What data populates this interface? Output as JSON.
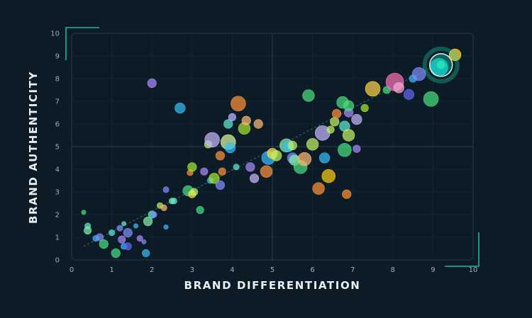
{
  "chart_data": {
    "type": "scatter",
    "title": "",
    "xlabel": "BRAND DIFFERENTIATION",
    "ylabel": "BRAND AUTHENTICITY",
    "xlim": [
      0,
      10
    ],
    "ylim": [
      0,
      10
    ],
    "xticks": [
      "0",
      "1",
      "2",
      "3",
      "4",
      "5",
      "6",
      "7",
      "8",
      "9",
      "10"
    ],
    "yticks": [
      "0",
      "1",
      "2",
      "3",
      "4",
      "5",
      "6",
      "7",
      "8",
      "9",
      "10"
    ],
    "grid": true,
    "trendline": true,
    "highlight": {
      "x": 9.2,
      "y": 8.6,
      "color": "#1de9b6"
    },
    "points": [
      {
        "x": 0.3,
        "y": 2.1,
        "size": 1.5,
        "color": "#4ade80"
      },
      {
        "x": 0.4,
        "y": 1.5,
        "size": 2,
        "color": "#5eead4"
      },
      {
        "x": 0.4,
        "y": 1.3,
        "size": 2.5,
        "color": "#86efac"
      },
      {
        "x": 0.6,
        "y": 0.95,
        "size": 2,
        "color": "#38bdf8"
      },
      {
        "x": 0.7,
        "y": 1.0,
        "size": 2.5,
        "color": "#818cf8"
      },
      {
        "x": 0.8,
        "y": 0.7,
        "size": 3,
        "color": "#4ade80"
      },
      {
        "x": 1.0,
        "y": 1.2,
        "size": 2,
        "color": "#5eead4"
      },
      {
        "x": 1.1,
        "y": 0.3,
        "size": 3,
        "color": "#4ade80"
      },
      {
        "x": 1.2,
        "y": 1.4,
        "size": 2,
        "color": "#818cf8"
      },
      {
        "x": 1.25,
        "y": 0.9,
        "size": 2.5,
        "color": "#a78bfa"
      },
      {
        "x": 1.3,
        "y": 1.6,
        "size": 1.5,
        "color": "#5eead4"
      },
      {
        "x": 1.3,
        "y": 0.6,
        "size": 2,
        "color": "#38bdf8"
      },
      {
        "x": 1.4,
        "y": 1.2,
        "size": 3,
        "color": "#818cf8"
      },
      {
        "x": 1.4,
        "y": 0.6,
        "size": 2.5,
        "color": "#6366f1"
      },
      {
        "x": 1.6,
        "y": 1.5,
        "size": 1.5,
        "color": "#38bdf8"
      },
      {
        "x": 1.7,
        "y": 0.95,
        "size": 2,
        "color": "#a78bfa"
      },
      {
        "x": 1.8,
        "y": 0.8,
        "size": 1.5,
        "color": "#818cf8"
      },
      {
        "x": 1.85,
        "y": 0.3,
        "size": 2.5,
        "color": "#38bdf8"
      },
      {
        "x": 1.9,
        "y": 1.7,
        "size": 3,
        "color": "#86efac"
      },
      {
        "x": 2.0,
        "y": 2.0,
        "size": 2.5,
        "color": "#5eead4"
      },
      {
        "x": 2.05,
        "y": 2.0,
        "size": 2,
        "color": "#818cf8"
      },
      {
        "x": 2.0,
        "y": 7.8,
        "size": 3,
        "color": "#a78bfa"
      },
      {
        "x": 2.2,
        "y": 2.4,
        "size": 2,
        "color": "#bef264"
      },
      {
        "x": 2.3,
        "y": 2.3,
        "size": 2,
        "color": "#fdba74"
      },
      {
        "x": 2.35,
        "y": 3.1,
        "size": 2,
        "color": "#818cf8"
      },
      {
        "x": 2.35,
        "y": 1.45,
        "size": 1.5,
        "color": "#38bdf8"
      },
      {
        "x": 2.5,
        "y": 2.6,
        "size": 2,
        "color": "#86efac"
      },
      {
        "x": 2.55,
        "y": 2.6,
        "size": 2,
        "color": "#5eead4"
      },
      {
        "x": 2.7,
        "y": 6.7,
        "size": 3.5,
        "color": "#38bdf8"
      },
      {
        "x": 2.9,
        "y": 3.05,
        "size": 3.5,
        "color": "#4ade80"
      },
      {
        "x": 2.95,
        "y": 3.85,
        "size": 2,
        "color": "#fb923c"
      },
      {
        "x": 3.0,
        "y": 4.1,
        "size": 3,
        "color": "#a3e635"
      },
      {
        "x": 3.0,
        "y": 2.9,
        "size": 2.5,
        "color": "#fde047"
      },
      {
        "x": 3.05,
        "y": 3.0,
        "size": 2.5,
        "color": "#bef264"
      },
      {
        "x": 3.2,
        "y": 2.2,
        "size": 2.5,
        "color": "#4ade80"
      },
      {
        "x": 3.3,
        "y": 3.9,
        "size": 2.5,
        "color": "#a78bfa"
      },
      {
        "x": 3.4,
        "y": 5.1,
        "size": 2.5,
        "color": "#bef264"
      },
      {
        "x": 3.45,
        "y": 3.5,
        "size": 2,
        "color": "#38bdf8"
      },
      {
        "x": 3.5,
        "y": 5.3,
        "size": 5,
        "color": "#c4b5fd"
      },
      {
        "x": 3.55,
        "y": 3.6,
        "size": 3.5,
        "color": "#a3e635"
      },
      {
        "x": 3.7,
        "y": 4.6,
        "size": 3,
        "color": "#fb923c"
      },
      {
        "x": 3.7,
        "y": 3.3,
        "size": 3,
        "color": "#818cf8"
      },
      {
        "x": 3.75,
        "y": 3.9,
        "size": 2.5,
        "color": "#fb923c"
      },
      {
        "x": 3.9,
        "y": 6.0,
        "size": 3,
        "color": "#5eead4"
      },
      {
        "x": 3.9,
        "y": 5.2,
        "size": 5,
        "color": "#d9f99d"
      },
      {
        "x": 3.95,
        "y": 4.95,
        "size": 3.5,
        "color": "#38bdf8"
      },
      {
        "x": 4.0,
        "y": 6.3,
        "size": 2.5,
        "color": "#c4b5fd"
      },
      {
        "x": 4.1,
        "y": 4.1,
        "size": 2,
        "color": "#5eead4"
      },
      {
        "x": 4.15,
        "y": 6.9,
        "size": 5,
        "color": "#fb923c"
      },
      {
        "x": 4.3,
        "y": 5.8,
        "size": 4,
        "color": "#a3e635"
      },
      {
        "x": 4.35,
        "y": 6.15,
        "size": 3,
        "color": "#fdba74"
      },
      {
        "x": 4.45,
        "y": 4.1,
        "size": 3,
        "color": "#a78bfa"
      },
      {
        "x": 4.55,
        "y": 3.6,
        "size": 3,
        "color": "#c4b5fd"
      },
      {
        "x": 4.65,
        "y": 6.0,
        "size": 3,
        "color": "#fdba74"
      },
      {
        "x": 4.85,
        "y": 3.9,
        "size": 4,
        "color": "#fb923c"
      },
      {
        "x": 4.9,
        "y": 4.5,
        "size": 4.5,
        "color": "#38bdf8"
      },
      {
        "x": 5.0,
        "y": 4.7,
        "size": 3.5,
        "color": "#fde047"
      },
      {
        "x": 5.1,
        "y": 4.6,
        "size": 3.5,
        "color": "#bef264"
      },
      {
        "x": 5.35,
        "y": 5.05,
        "size": 4.5,
        "color": "#86efac"
      },
      {
        "x": 5.4,
        "y": 5.0,
        "size": 3.5,
        "color": "#38bdf8"
      },
      {
        "x": 5.5,
        "y": 5.05,
        "size": 3,
        "color": "#bef264"
      },
      {
        "x": 5.5,
        "y": 4.5,
        "size": 3.5,
        "color": "#818cf8"
      },
      {
        "x": 5.55,
        "y": 4.4,
        "size": 3.5,
        "color": "#86efac"
      },
      {
        "x": 5.7,
        "y": 4.1,
        "size": 4.5,
        "color": "#4ade80"
      },
      {
        "x": 5.8,
        "y": 4.45,
        "size": 4.5,
        "color": "#fdba74"
      },
      {
        "x": 5.9,
        "y": 7.25,
        "size": 4,
        "color": "#4ade80"
      },
      {
        "x": 6.0,
        "y": 5.1,
        "size": 4,
        "color": "#bef264"
      },
      {
        "x": 6.15,
        "y": 3.15,
        "size": 4,
        "color": "#fb923c"
      },
      {
        "x": 6.25,
        "y": 5.6,
        "size": 5,
        "color": "#c4b5fd"
      },
      {
        "x": 6.3,
        "y": 4.5,
        "size": 3.5,
        "color": "#38bdf8"
      },
      {
        "x": 6.4,
        "y": 3.7,
        "size": 4.5,
        "color": "#facc15"
      },
      {
        "x": 6.45,
        "y": 5.75,
        "size": 2.5,
        "color": "#bef264"
      },
      {
        "x": 6.55,
        "y": 6.1,
        "size": 3,
        "color": "#bef264"
      },
      {
        "x": 6.6,
        "y": 6.45,
        "size": 3,
        "color": "#fb923c"
      },
      {
        "x": 6.75,
        "y": 6.95,
        "size": 4,
        "color": "#4ade80"
      },
      {
        "x": 6.8,
        "y": 5.9,
        "size": 3.5,
        "color": "#5eead4"
      },
      {
        "x": 6.8,
        "y": 4.85,
        "size": 4.5,
        "color": "#4ade80"
      },
      {
        "x": 6.85,
        "y": 2.9,
        "size": 3,
        "color": "#fb923c"
      },
      {
        "x": 6.9,
        "y": 5.5,
        "size": 4,
        "color": "#bef264"
      },
      {
        "x": 6.9,
        "y": 6.5,
        "size": 3,
        "color": "#a78bfa"
      },
      {
        "x": 6.9,
        "y": 6.8,
        "size": 3.5,
        "color": "#4ade80"
      },
      {
        "x": 7.1,
        "y": 6.2,
        "size": 3.5,
        "color": "#c4b5fd"
      },
      {
        "x": 7.1,
        "y": 4.9,
        "size": 2.5,
        "color": "#a78bfa"
      },
      {
        "x": 7.3,
        "y": 6.7,
        "size": 2.5,
        "color": "#a3e635"
      },
      {
        "x": 7.5,
        "y": 7.55,
        "size": 5,
        "color": "#fcd34d"
      },
      {
        "x": 7.85,
        "y": 7.5,
        "size": 2.5,
        "color": "#4ade80"
      },
      {
        "x": 8.05,
        "y": 7.85,
        "size": 6,
        "color": "#f472b6"
      },
      {
        "x": 8.15,
        "y": 7.6,
        "size": 3.5,
        "color": "#f9a8d4"
      },
      {
        "x": 8.4,
        "y": 7.3,
        "size": 3.5,
        "color": "#6366f1"
      },
      {
        "x": 8.5,
        "y": 8.0,
        "size": 2.5,
        "color": "#38bdf8"
      },
      {
        "x": 8.65,
        "y": 8.2,
        "size": 4.5,
        "color": "#818cf8"
      },
      {
        "x": 8.95,
        "y": 7.1,
        "size": 5,
        "color": "#4ade80"
      },
      {
        "x": 9.15,
        "y": 8.5,
        "size": 6,
        "color": "#22d3ee"
      },
      {
        "x": 9.55,
        "y": 9.05,
        "size": 4,
        "color": "#fde047"
      }
    ]
  }
}
